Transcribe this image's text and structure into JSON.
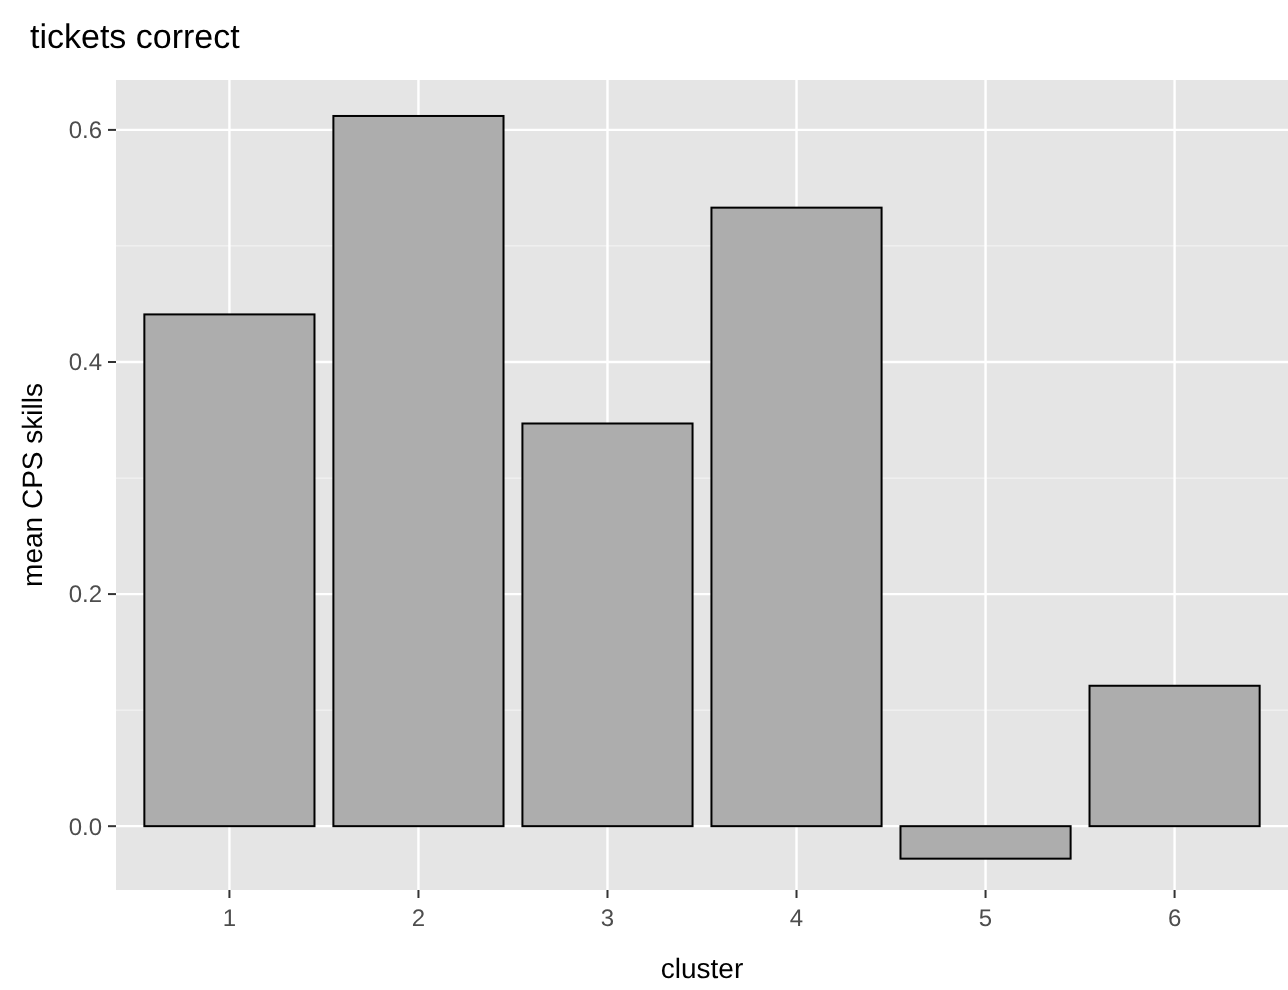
{
  "chart_data": {
    "type": "bar",
    "title": "tickets correct",
    "xlabel": "cluster",
    "ylabel": "mean CPS skills",
    "categories": [
      "1",
      "2",
      "3",
      "4",
      "5",
      "6"
    ],
    "values": [
      0.441,
      0.612,
      0.347,
      0.533,
      -0.028,
      0.121
    ],
    "color": "#adadad",
    "ylim": [
      -0.055,
      0.643
    ],
    "yticks": [
      {
        "value": 0,
        "label": "0.0"
      },
      {
        "value": 0.2,
        "label": "0.2"
      },
      {
        "value": 0.4,
        "label": "0.4"
      },
      {
        "value": 0.6,
        "label": "0.6"
      }
    ],
    "grid": true
  }
}
